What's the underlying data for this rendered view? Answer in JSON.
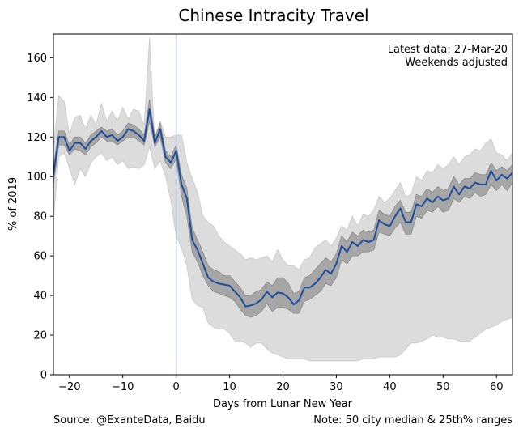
{
  "chart_data": {
    "type": "line",
    "title": "Chinese Intracity Travel",
    "xlabel": "Days from Lunar New Year",
    "ylabel": "% of 2019",
    "xlim": [
      -23,
      63
    ],
    "ylim": [
      0,
      172
    ],
    "x_ticks": [
      -20,
      -10,
      0,
      10,
      20,
      30,
      40,
      50,
      60
    ],
    "x_tick_labels": [
      "−20",
      "−10",
      "0",
      "10",
      "20",
      "30",
      "40",
      "50",
      "60"
    ],
    "y_ticks": [
      0,
      20,
      40,
      60,
      80,
      100,
      120,
      140,
      160
    ],
    "y_tick_labels": [
      "0",
      "20",
      "40",
      "60",
      "80",
      "100",
      "120",
      "140",
      "160"
    ],
    "grid": false,
    "reference_line_x": 0,
    "annotation_lines": [
      "Latest data: 27-Mar-20",
      "Weekends adjusted"
    ],
    "source": "Source: @ExanteData, Baidu",
    "note": "Note: 50 city median & 25th% ranges",
    "colors": {
      "median": "#1f4e9c",
      "inner_band": "#a6a6a6",
      "outer_band": "#dcdcdc",
      "reference_line": "#b0c4de"
    },
    "x": [
      -23,
      -22,
      -21,
      -20,
      -19,
      -18,
      -17,
      -16,
      -15,
      -14,
      -13,
      -12,
      -11,
      -10,
      -9,
      -8,
      -7,
      -6,
      -5,
      -4,
      -3,
      -2,
      -1,
      0,
      1,
      2,
      3,
      4,
      5,
      6,
      7,
      8,
      9,
      10,
      11,
      12,
      13,
      14,
      15,
      16,
      17,
      18,
      19,
      20,
      21,
      22,
      23,
      24,
      25,
      26,
      27,
      28,
      29,
      30,
      31,
      32,
      33,
      34,
      35,
      36,
      37,
      38,
      39,
      40,
      41,
      42,
      43,
      44,
      45,
      46,
      47,
      48,
      49,
      50,
      51,
      52,
      53,
      54,
      55,
      56,
      57,
      58,
      59,
      60,
      61,
      62,
      63
    ],
    "series": [
      {
        "name": "Median",
        "values": [
          101,
          120,
          120,
          113,
          117,
          117,
          114,
          118,
          120,
          123,
          120,
          121,
          118,
          120,
          124,
          123,
          121,
          118,
          134,
          117,
          124,
          110,
          107,
          113,
          96,
          89,
          68,
          63,
          56,
          49,
          47,
          46,
          45.5,
          45,
          42,
          39,
          34.5,
          35,
          36,
          38,
          42,
          39,
          41.5,
          41,
          39,
          35.5,
          37.5,
          44,
          44,
          46,
          49,
          53,
          51,
          56,
          65,
          62,
          67,
          65,
          68,
          67,
          68,
          78,
          76,
          75,
          80,
          84,
          77,
          77,
          86,
          85,
          89,
          87,
          90,
          88,
          89,
          95,
          91,
          95,
          94,
          97,
          96,
          96,
          103,
          98,
          101,
          99,
          102
        ]
      }
    ],
    "bands": [
      {
        "name": "inner range",
        "lower": [
          96,
          116,
          116,
          111,
          114,
          113,
          111,
          115,
          117,
          120,
          118,
          118,
          116,
          118,
          120,
          120,
          118,
          116,
          128,
          115,
          120,
          107,
          104,
          109,
          90,
          80,
          62,
          57,
          50,
          45,
          42,
          41,
          40,
          39,
          37,
          33,
          30,
          29,
          30,
          32,
          36,
          32,
          34,
          34,
          33,
          31,
          31,
          37,
          38,
          40,
          42,
          46,
          45,
          49,
          58,
          56,
          60,
          60,
          62,
          62,
          63,
          72,
          71,
          70,
          74,
          77,
          71,
          71,
          80,
          79,
          83,
          82,
          85,
          82,
          83,
          89,
          87,
          90,
          89,
          92,
          90,
          91,
          96,
          93,
          96,
          93,
          97
        ],
        "upper": [
          105,
          123,
          123,
          116,
          120,
          120,
          117,
          121,
          123,
          125,
          123,
          124,
          121,
          123,
          127,
          126,
          124,
          121,
          139,
          120,
          127,
          113,
          110,
          116,
          101,
          94,
          74,
          68,
          62,
          55,
          53,
          52,
          50,
          50,
          47,
          44,
          40,
          40,
          42,
          43,
          47,
          45,
          49,
          49,
          46,
          41,
          42,
          49,
          50,
          53,
          56,
          59,
          57,
          61,
          70,
          67,
          72,
          70,
          73,
          72,
          73,
          83,
          81,
          80,
          85,
          88,
          82,
          82,
          91,
          90,
          94,
          92,
          95,
          93,
          94,
          100,
          96,
          99,
          99,
          102,
          101,
          101,
          107,
          103,
          105,
          103,
          106
        ]
      },
      {
        "name": "outer range",
        "lower": [
          78,
          110,
          112,
          104,
          96,
          104,
          100,
          107,
          110,
          112,
          108,
          110,
          106,
          108,
          104,
          105,
          104,
          106,
          115,
          104,
          108,
          100,
          88,
          70,
          64,
          55,
          38,
          35,
          34,
          26,
          24,
          23,
          23,
          21,
          17,
          17,
          16,
          14,
          16,
          16,
          13,
          11,
          10,
          9,
          8,
          8,
          8,
          8,
          7,
          7,
          7,
          7,
          7,
          7,
          7,
          7,
          7,
          7,
          8,
          8,
          8,
          9,
          9,
          9,
          9,
          10,
          13,
          16,
          16,
          17,
          18,
          20,
          19,
          19,
          18,
          18,
          17,
          17,
          17,
          19,
          21,
          23,
          24,
          25,
          27,
          28,
          29
        ],
        "upper": [
          115,
          141,
          138,
          121,
          130,
          131,
          124,
          131,
          126,
          137,
          128,
          133,
          128,
          135,
          129,
          134,
          133,
          126,
          170,
          116,
          128,
          120,
          120,
          121,
          121,
          107,
          99,
          92,
          80,
          77,
          75,
          70,
          67,
          65,
          63,
          61,
          58,
          59,
          58,
          59,
          60,
          57,
          63,
          58,
          55,
          55,
          53,
          58,
          59,
          64,
          66,
          68,
          65,
          69,
          75,
          73,
          80,
          75,
          81,
          80,
          83,
          90,
          87,
          89,
          93,
          97,
          90,
          91,
          100,
          98,
          103,
          102,
          106,
          104,
          106,
          110,
          106,
          110,
          111,
          114,
          113,
          117,
          119,
          112,
          111,
          108,
          112
        ]
      }
    ]
  }
}
